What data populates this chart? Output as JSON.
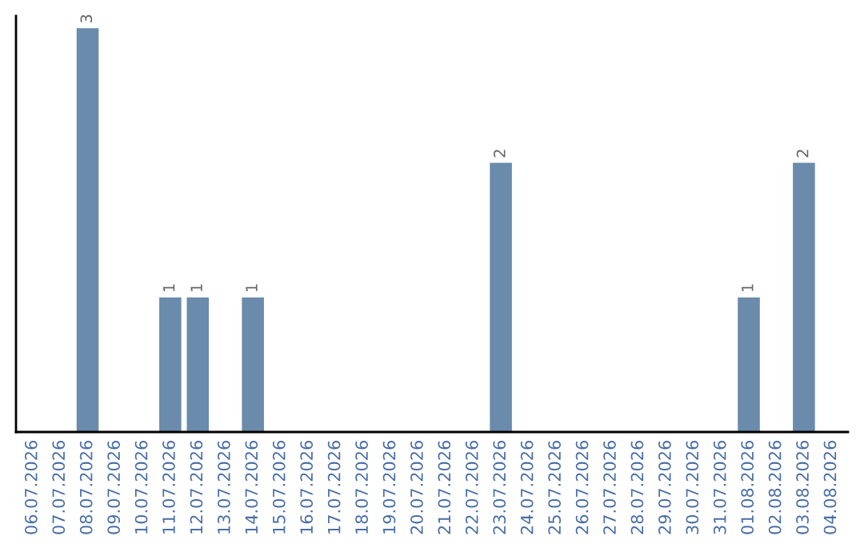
{
  "chart_data": {
    "type": "bar",
    "categories": [
      "06.07.2026",
      "07.07.2026",
      "08.07.2026",
      "09.07.2026",
      "10.07.2026",
      "11.07.2026",
      "12.07.2026",
      "13.07.2026",
      "14.07.2026",
      "15.07.2026",
      "16.07.2026",
      "17.07.2026",
      "18.07.2026",
      "19.07.2026",
      "20.07.2026",
      "21.07.2026",
      "22.07.2026",
      "23.07.2026",
      "24.07.2026",
      "25.07.2026",
      "26.07.2026",
      "27.07.2026",
      "28.07.2026",
      "29.07.2026",
      "30.07.2026",
      "31.07.2026",
      "01.08.2026",
      "02.08.2026",
      "03.08.2026",
      "04.08.2026"
    ],
    "values": [
      null,
      null,
      3,
      null,
      null,
      1,
      1,
      null,
      1,
      null,
      null,
      null,
      null,
      null,
      null,
      null,
      null,
      2,
      null,
      null,
      null,
      null,
      null,
      null,
      null,
      null,
      1,
      null,
      2,
      null
    ],
    "value_labels": [
      null,
      null,
      "3",
      null,
      null,
      "1",
      "1",
      null,
      "1",
      null,
      null,
      null,
      null,
      null,
      null,
      null,
      null,
      "2",
      null,
      null,
      null,
      null,
      null,
      null,
      null,
      null,
      "1",
      null,
      "2",
      null
    ],
    "color": "#6a8bab",
    "tick_labels": "x",
    "grid": false,
    "legend": false
  }
}
